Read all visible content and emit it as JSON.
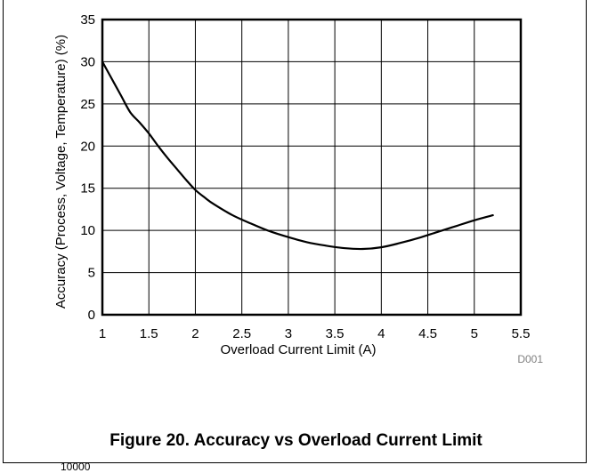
{
  "figure": {
    "caption": "Figure 20. Accuracy vs Overload Current Limit",
    "code": "D001",
    "bottom_fragment": "10000"
  },
  "chart_data": {
    "type": "line",
    "title": "",
    "xlabel": "Overload Current Limit (A)",
    "ylabel": "Accuracy (Process, Voltage, Temperature) (%)",
    "xlim": [
      1,
      5.5
    ],
    "ylim": [
      0,
      35
    ],
    "xticks": [
      "1",
      "1.5",
      "2",
      "2.5",
      "3",
      "3.5",
      "4",
      "4.5",
      "5",
      "5.5"
    ],
    "yticks": [
      "0",
      "5",
      "10",
      "15",
      "20",
      "25",
      "30",
      "35"
    ],
    "grid": true,
    "series": [
      {
        "x": [
          1.0,
          1.1,
          1.2,
          1.3,
          1.4,
          1.5,
          1.6,
          1.7,
          1.8,
          1.9,
          2.0,
          2.1,
          2.2,
          2.4,
          2.6,
          2.8,
          3.0,
          3.2,
          3.4,
          3.6,
          3.8,
          4.0,
          4.2,
          4.4,
          4.6,
          4.8,
          5.0,
          5.2
        ],
        "values": [
          30.0,
          28.0,
          26.0,
          24.0,
          22.8,
          21.5,
          20.0,
          18.6,
          17.3,
          16.0,
          14.8,
          13.9,
          13.1,
          11.8,
          10.8,
          9.9,
          9.2,
          8.6,
          8.2,
          7.9,
          7.8,
          8.0,
          8.5,
          9.1,
          9.8,
          10.5,
          11.2,
          11.8
        ]
      }
    ]
  }
}
